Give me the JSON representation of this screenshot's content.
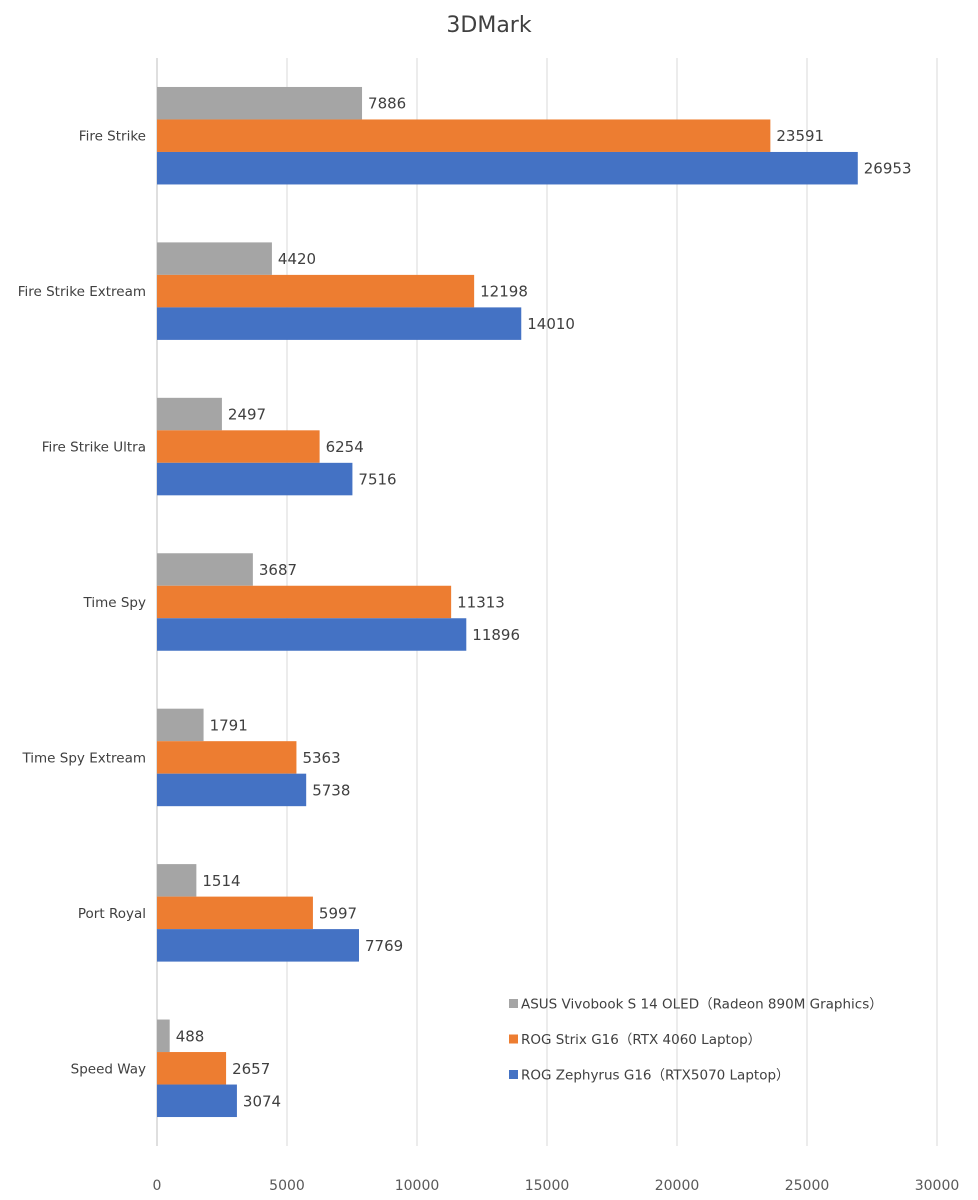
{
  "chart_data": {
    "type": "bar",
    "orientation": "horizontal",
    "title": "3DMark",
    "categories": [
      "Fire Strike",
      "Fire Strike Extream",
      "Fire Strike Ultra",
      "Time Spy",
      "Time Spy Extream",
      "Port Royal",
      "Speed Way"
    ],
    "series": [
      {
        "name": "ASUS Vivobook S 14 OLED（Radeon 890M Graphics）",
        "color": "#a5a5a5",
        "values": [
          7886,
          4420,
          2497,
          3687,
          1791,
          1514,
          488
        ]
      },
      {
        "name": "ROG Strix G16（RTX 4060 Laptop）",
        "color": "#ed7d31",
        "values": [
          23591,
          12198,
          6254,
          11313,
          5363,
          5997,
          2657
        ]
      },
      {
        "name": "ROG Zephyrus G16（RTX5070 Laptop）",
        "color": "#4472c4",
        "values": [
          26953,
          14010,
          7516,
          11896,
          5738,
          7769,
          3074
        ]
      }
    ],
    "xlim": [
      0,
      30000
    ],
    "xticks": [
      "0",
      "5000",
      "10000",
      "15000",
      "20000",
      "25000",
      "30000"
    ],
    "grid": "vertical",
    "legend_position": "bottom-right",
    "data_labels": true
  }
}
